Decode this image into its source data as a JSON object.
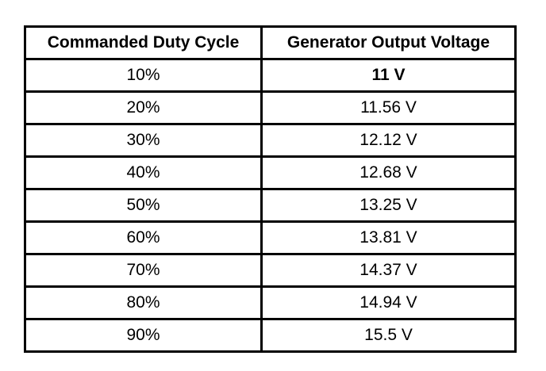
{
  "table": {
    "headers": [
      "Commanded Duty Cycle",
      "Generator Output Voltage"
    ],
    "rows": [
      [
        "10%",
        "11 V"
      ],
      [
        "20%",
        "11.56 V"
      ],
      [
        "30%",
        "12.12 V"
      ],
      [
        "40%",
        "12.68 V"
      ],
      [
        "50%",
        "13.25 V"
      ],
      [
        "60%",
        "13.81 V"
      ],
      [
        "70%",
        "14.37 V"
      ],
      [
        "80%",
        "14.94 V"
      ],
      [
        "90%",
        "15.5 V"
      ]
    ]
  }
}
